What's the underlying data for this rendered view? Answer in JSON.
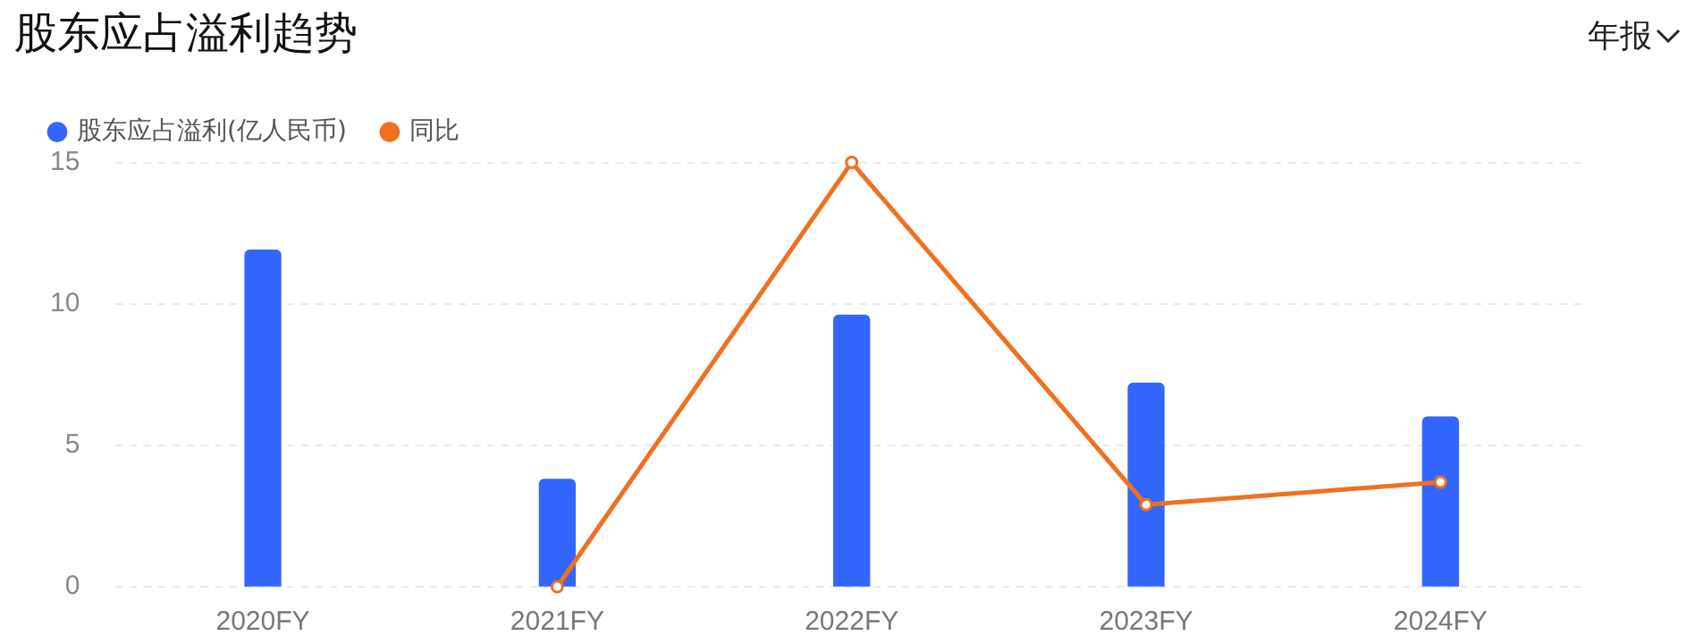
{
  "chart_data": {
    "type": "bar",
    "title": "股东应占溢利趋势",
    "annotations": [
      "年报"
    ],
    "categories": [
      "2020FY",
      "2021FY",
      "2022FY",
      "2023FY",
      "2024FY"
    ],
    "series": [
      {
        "name": "股东应占溢利(亿人民币)",
        "color": "#3366ff",
        "values": [
          11.9,
          3.8,
          9.6,
          7.2,
          6.0
        ]
      },
      {
        "name": "同比",
        "type": "line",
        "color": "#f07020",
        "values": [
          null,
          0,
          15,
          2.9,
          3.7
        ],
        "marker": "circle"
      }
    ],
    "ylim": [
      0,
      15
    ],
    "yticks": [
      0,
      5,
      10,
      15
    ],
    "grid": "y",
    "legend": "top left"
  }
}
